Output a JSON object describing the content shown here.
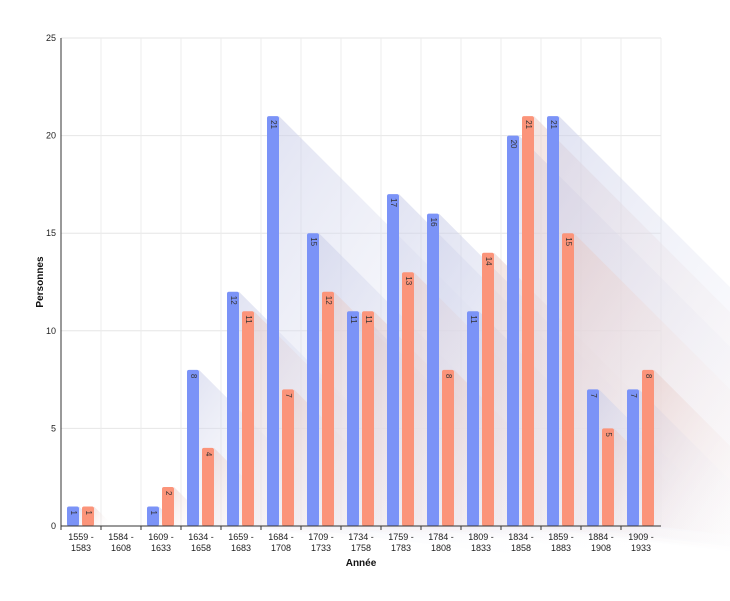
{
  "chart_data": {
    "type": "bar",
    "title": "",
    "xlabel": "Année",
    "ylabel": "Personnes",
    "ylim": [
      0,
      25
    ],
    "yticks": [
      0,
      5,
      10,
      15,
      20,
      25
    ],
    "grid": true,
    "legend": "none",
    "categories": [
      [
        "1559 -",
        "1583"
      ],
      [
        "1584 -",
        "1608"
      ],
      [
        "1609 -",
        "1633"
      ],
      [
        "1634 -",
        "1658"
      ],
      [
        "1659 -",
        "1683"
      ],
      [
        "1684 -",
        "1708"
      ],
      [
        "1709 -",
        "1733"
      ],
      [
        "1734 -",
        "1758"
      ],
      [
        "1759 -",
        "1783"
      ],
      [
        "1784 -",
        "1808"
      ],
      [
        "1809 -",
        "1833"
      ],
      [
        "1834 -",
        "1858"
      ],
      [
        "1859 -",
        "1883"
      ],
      [
        "1884 -",
        "1908"
      ],
      [
        "1909 -",
        "1933"
      ]
    ],
    "series": [
      {
        "color": "#7b93f7",
        "values": [
          1,
          0,
          1,
          8,
          12,
          21,
          15,
          11,
          17,
          16,
          11,
          20,
          21,
          7,
          7
        ]
      },
      {
        "color": "#fb947a",
        "values": [
          1,
          0,
          2,
          4,
          11,
          7,
          12,
          11,
          13,
          8,
          14,
          21,
          15,
          5,
          8
        ]
      }
    ]
  }
}
